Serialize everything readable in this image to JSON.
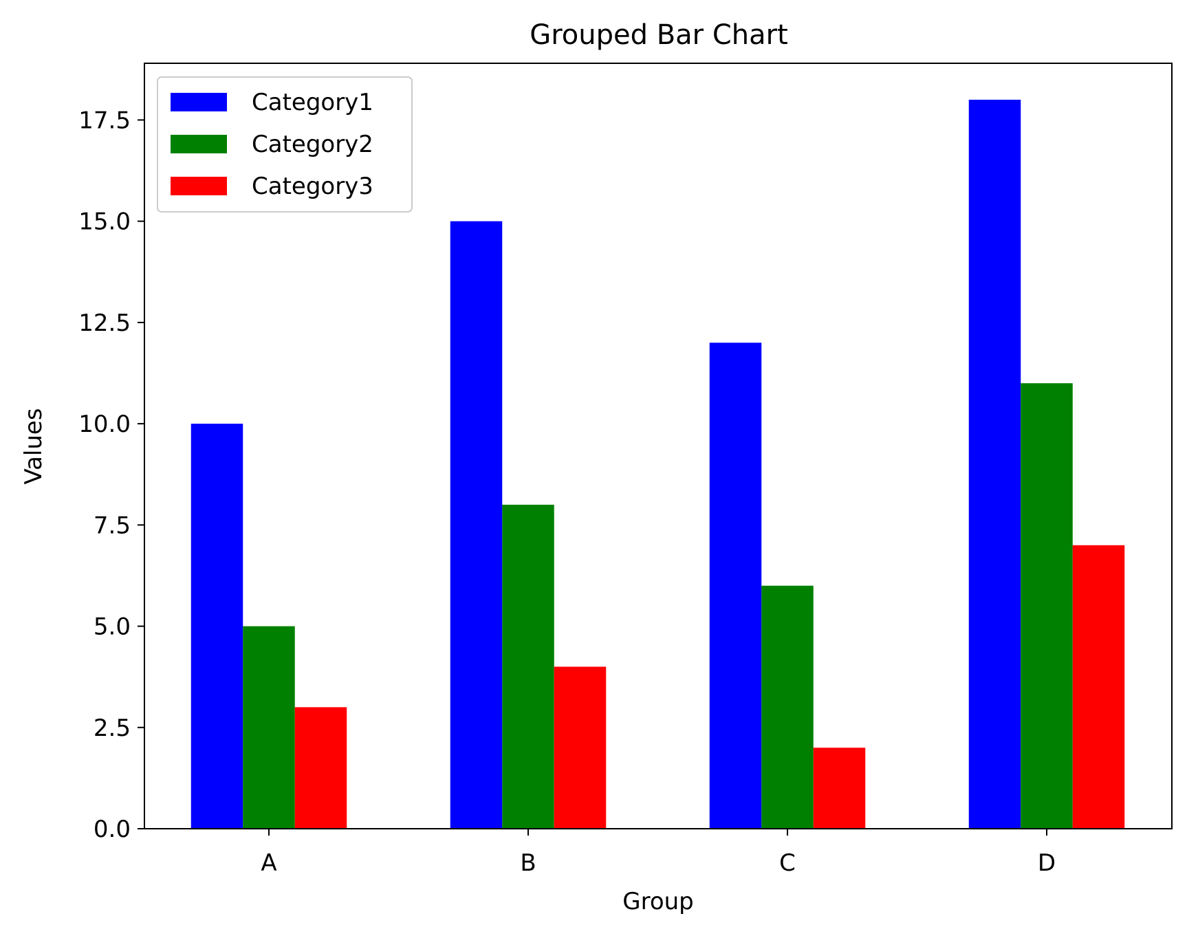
{
  "chart_data": {
    "type": "bar",
    "title": "Grouped Bar Chart",
    "xlabel": "Group",
    "ylabel": "Values",
    "categories": [
      "A",
      "B",
      "C",
      "D"
    ],
    "series": [
      {
        "name": "Category1",
        "color": "#0000ff",
        "values": [
          10,
          15,
          12,
          18
        ]
      },
      {
        "name": "Category2",
        "color": "#008000",
        "values": [
          5,
          8,
          6,
          11
        ]
      },
      {
        "name": "Category3",
        "color": "#ff0000",
        "values": [
          3,
          4,
          2,
          7
        ]
      }
    ],
    "ylim": [
      0,
      18.9
    ],
    "yticks": [
      "0.0",
      "2.5",
      "5.0",
      "7.5",
      "10.0",
      "12.5",
      "15.0",
      "17.5"
    ],
    "grid": false,
    "legend_position": "upper left"
  }
}
